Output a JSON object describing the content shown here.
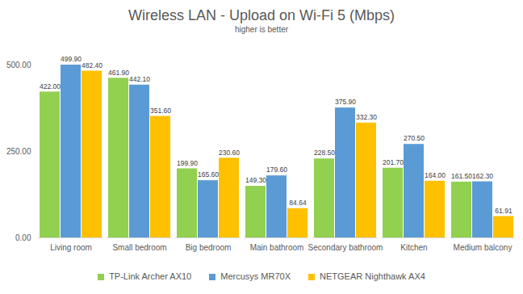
{
  "chart_data": {
    "type": "bar",
    "title": "Wireless LAN - Upload on Wi-Fi 5 (Mbps)",
    "subtitle": "higher is better",
    "categories": [
      "Living room",
      "Small bedroom",
      "Big bedroom",
      "Main bathroom",
      "Secondary bathroom",
      "Kitchen",
      "Medium balcony"
    ],
    "series": [
      {
        "name": "TP-Link Archer AX10",
        "color": "#92d050",
        "values": [
          422.0,
          461.9,
          199.9,
          149.3,
          228.5,
          201.7,
          161.5
        ],
        "value_labels": [
          "422.00",
          "461.90",
          "199.90",
          "149.30",
          "228.50",
          "201.70",
          "161.50"
        ]
      },
      {
        "name": "Mercusys MR70X",
        "color": "#5b9bd5",
        "values": [
          499.9,
          442.1,
          165.6,
          179.6,
          375.9,
          270.5,
          162.3
        ],
        "value_labels": [
          "499.90",
          "442.10",
          "165.60",
          "179.60",
          "375.90",
          "270.50",
          "162.30"
        ]
      },
      {
        "name": "NETGEAR Nighthawk AX4",
        "color": "#ffc000",
        "values": [
          482.4,
          351.6,
          230.6,
          84.64,
          332.3,
          164.0,
          61.91
        ],
        "value_labels": [
          "482.40",
          "351.60",
          "230.60",
          "84.64",
          "332.30",
          "164.00",
          "61.91"
        ]
      }
    ],
    "ylim": [
      0,
      500
    ],
    "yticks": [
      {
        "value": 0,
        "label": "0.00"
      },
      {
        "value": 250,
        "label": "250.00"
      },
      {
        "value": 500,
        "label": "500.00"
      }
    ],
    "grid": false,
    "data_labels": true,
    "legend": "bottom"
  }
}
